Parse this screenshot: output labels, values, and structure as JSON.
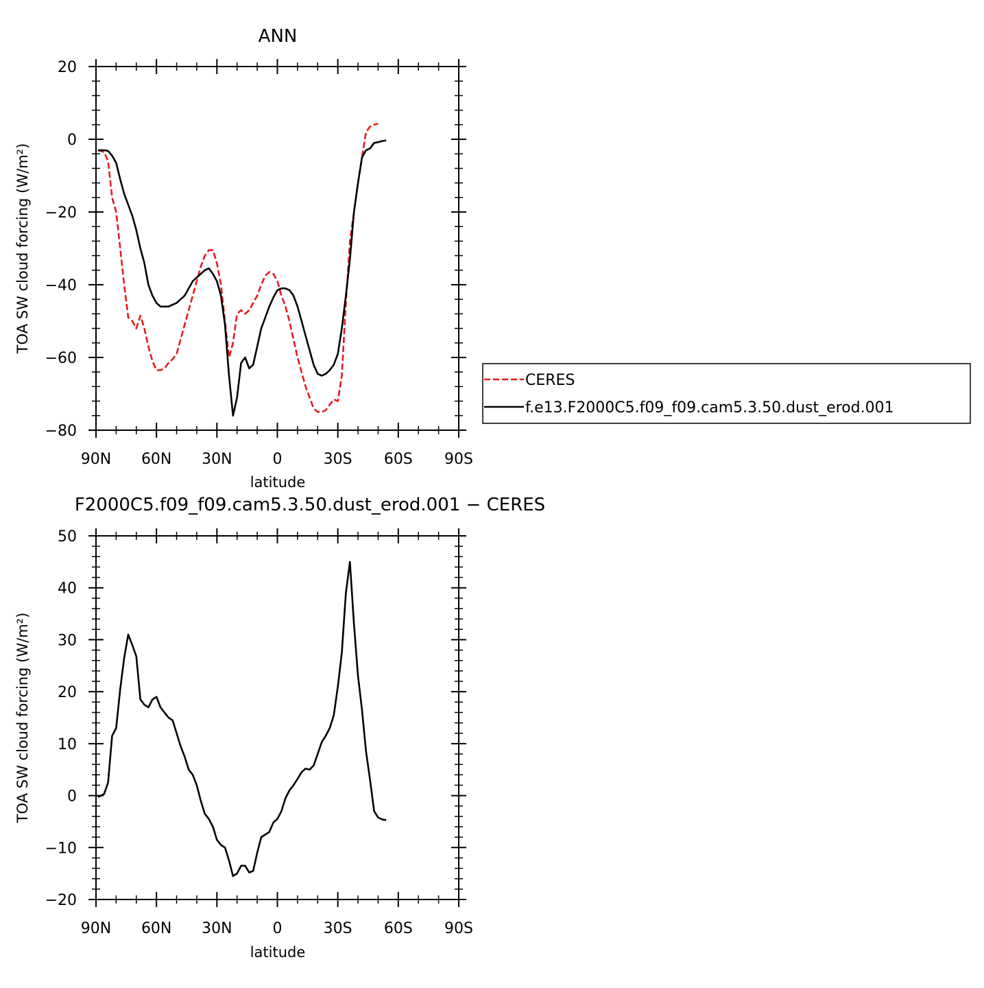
{
  "chart_data": [
    {
      "type": "line",
      "title": "ANN",
      "xlabel": "latitude",
      "ylabel": "TOA SW cloud forcing (W/m²)",
      "xlim": [
        90,
        -90
      ],
      "ylim": [
        -80,
        20
      ],
      "x_ticks": [
        90,
        60,
        30,
        0,
        -30,
        -60,
        -90
      ],
      "x_tick_labels": [
        "90N",
        "60N",
        "30N",
        "0",
        "30S",
        "60S",
        "90S"
      ],
      "y_ticks": [
        -80,
        -60,
        -40,
        -20,
        0,
        20
      ],
      "grid": false,
      "legend_placement": "right",
      "series": [
        {
          "name": "CERES",
          "color": "#e41a1c",
          "dash": "dashed",
          "points": [
            [
              89,
              -3
            ],
            [
              86,
              -3.5
            ],
            [
              84,
              -6
            ],
            [
              82,
              -16
            ],
            [
              80,
              -20
            ],
            [
              78,
              -30
            ],
            [
              76,
              -40
            ],
            [
              74,
              -49
            ],
            [
              72,
              -50
            ],
            [
              70,
              -52
            ],
            [
              68,
              -48.5
            ],
            [
              66,
              -52
            ],
            [
              64,
              -57
            ],
            [
              62,
              -61
            ],
            [
              60,
              -63.5
            ],
            [
              58,
              -63.5
            ],
            [
              56,
              -63
            ],
            [
              54,
              -61.5
            ],
            [
              52,
              -60.5
            ],
            [
              50,
              -59
            ],
            [
              48,
              -55
            ],
            [
              46,
              -51
            ],
            [
              44,
              -47
            ],
            [
              42,
              -43
            ],
            [
              40,
              -39
            ],
            [
              38,
              -35
            ],
            [
              36,
              -32
            ],
            [
              34,
              -30.5
            ],
            [
              32,
              -30.5
            ],
            [
              30,
              -34
            ],
            [
              28,
              -40
            ],
            [
              26,
              -50
            ],
            [
              24,
              -60
            ],
            [
              22,
              -56
            ],
            [
              20,
              -48
            ],
            [
              18,
              -47
            ],
            [
              16,
              -48
            ],
            [
              14,
              -47
            ],
            [
              12,
              -45
            ],
            [
              10,
              -43
            ],
            [
              8,
              -40
            ],
            [
              6,
              -37.5
            ],
            [
              4,
              -36.5
            ],
            [
              2,
              -37
            ],
            [
              0,
              -39
            ],
            [
              -2,
              -43
            ],
            [
              -4,
              -46
            ],
            [
              -6,
              -50
            ],
            [
              -8,
              -55
            ],
            [
              -10,
              -60
            ],
            [
              -12,
              -64
            ],
            [
              -14,
              -68
            ],
            [
              -16,
              -71
            ],
            [
              -18,
              -74
            ],
            [
              -20,
              -75
            ],
            [
              -22,
              -75
            ],
            [
              -24,
              -74.5
            ],
            [
              -26,
              -73
            ],
            [
              -28,
              -71.5
            ],
            [
              -30,
              -72
            ],
            [
              -32,
              -65
            ],
            [
              -34,
              -45
            ],
            [
              -36,
              -28
            ],
            [
              -38,
              -20
            ],
            [
              -40,
              -12
            ],
            [
              -42,
              -5
            ],
            [
              -44,
              2
            ],
            [
              -46,
              3.5
            ],
            [
              -48,
              4
            ],
            [
              -50,
              4.3
            ]
          ]
        },
        {
          "name": "f.e13.F2000C5.f09_f09.cam5.3.50.dust_erod.001",
          "color": "#000000",
          "dash": "solid",
          "points": [
            [
              89,
              -3
            ],
            [
              86,
              -3
            ],
            [
              84,
              -3.2
            ],
            [
              82,
              -4.5
            ],
            [
              80,
              -6.5
            ],
            [
              78,
              -11
            ],
            [
              76,
              -15
            ],
            [
              74,
              -18
            ],
            [
              72,
              -21
            ],
            [
              70,
              -25
            ],
            [
              68,
              -30
            ],
            [
              66,
              -34
            ],
            [
              64,
              -40
            ],
            [
              62,
              -43
            ],
            [
              60,
              -45
            ],
            [
              58,
              -46
            ],
            [
              56,
              -46
            ],
            [
              54,
              -46
            ],
            [
              52,
              -45.5
            ],
            [
              50,
              -45
            ],
            [
              48,
              -44
            ],
            [
              46,
              -43
            ],
            [
              44,
              -41
            ],
            [
              42,
              -39
            ],
            [
              40,
              -38
            ],
            [
              38,
              -37
            ],
            [
              36,
              -36
            ],
            [
              34,
              -35.5
            ],
            [
              32,
              -37
            ],
            [
              30,
              -39
            ],
            [
              28,
              -43
            ],
            [
              26,
              -51
            ],
            [
              24,
              -65
            ],
            [
              22,
              -76
            ],
            [
              20,
              -71
            ],
            [
              18,
              -61.5
            ],
            [
              16,
              -60
            ],
            [
              14,
              -63
            ],
            [
              12,
              -62
            ],
            [
              10,
              -57
            ],
            [
              8,
              -52
            ],
            [
              6,
              -49
            ],
            [
              4,
              -46
            ],
            [
              2,
              -43.5
            ],
            [
              0,
              -41.5
            ],
            [
              -2,
              -41
            ],
            [
              -4,
              -41
            ],
            [
              -6,
              -41.5
            ],
            [
              -8,
              -43
            ],
            [
              -10,
              -46
            ],
            [
              -12,
              -50
            ],
            [
              -14,
              -54
            ],
            [
              -16,
              -58
            ],
            [
              -18,
              -62
            ],
            [
              -20,
              -64.5
            ],
            [
              -22,
              -65
            ],
            [
              -24,
              -64.5
            ],
            [
              -26,
              -63.5
            ],
            [
              -28,
              -62
            ],
            [
              -30,
              -59
            ],
            [
              -32,
              -52
            ],
            [
              -34,
              -43
            ],
            [
              -36,
              -33
            ],
            [
              -38,
              -20
            ],
            [
              -40,
              -12
            ],
            [
              -42,
              -5
            ],
            [
              -44,
              -3
            ],
            [
              -46,
              -2.5
            ],
            [
              -48,
              -1
            ],
            [
              -50,
              -0.8
            ],
            [
              -52,
              -0.5
            ],
            [
              -54,
              -0.3
            ]
          ]
        }
      ]
    },
    {
      "type": "line",
      "title": "F2000C5.f09_f09.cam5.3.50.dust_erod.001 − CERES",
      "xlabel": "latitude",
      "ylabel": "TOA SW cloud forcing (W/m²)",
      "xlim": [
        90,
        -90
      ],
      "ylim": [
        -20,
        50
      ],
      "x_ticks": [
        90,
        60,
        30,
        0,
        -30,
        -60,
        -90
      ],
      "x_tick_labels": [
        "90N",
        "60N",
        "30N",
        "0",
        "30S",
        "60S",
        "90S"
      ],
      "y_ticks": [
        -20,
        -10,
        0,
        10,
        20,
        30,
        40,
        50
      ],
      "grid": false,
      "series": [
        {
          "color": "#000000",
          "dash": "solid",
          "points": [
            [
              89,
              -0.3
            ],
            [
              86,
              0.3
            ],
            [
              84,
              2.5
            ],
            [
              82,
              11.5
            ],
            [
              80,
              13
            ],
            [
              78,
              20.5
            ],
            [
              76,
              26.5
            ],
            [
              74,
              31
            ],
            [
              72,
              29
            ],
            [
              70,
              26.8
            ],
            [
              68,
              18.5
            ],
            [
              66,
              17.5
            ],
            [
              64,
              17
            ],
            [
              62,
              18.5
            ],
            [
              60,
              19
            ],
            [
              58,
              17
            ],
            [
              56,
              16
            ],
            [
              54,
              15
            ],
            [
              52,
              14.5
            ],
            [
              50,
              12
            ],
            [
              48,
              9.5
            ],
            [
              46,
              7.5
            ],
            [
              44,
              5
            ],
            [
              42,
              4
            ],
            [
              40,
              2
            ],
            [
              38,
              -1
            ],
            [
              36,
              -3.5
            ],
            [
              34,
              -4.5
            ],
            [
              32,
              -6
            ],
            [
              30,
              -8.5
            ],
            [
              28,
              -9.5
            ],
            [
              26,
              -10
            ],
            [
              24,
              -12.5
            ],
            [
              22,
              -15.5
            ],
            [
              20,
              -15
            ],
            [
              18,
              -13.5
            ],
            [
              16,
              -13.5
            ],
            [
              14,
              -14.8
            ],
            [
              12,
              -14.5
            ],
            [
              10,
              -11
            ],
            [
              8,
              -8
            ],
            [
              6,
              -7.5
            ],
            [
              4,
              -7
            ],
            [
              2,
              -5.2
            ],
            [
              0,
              -4.5
            ],
            [
              -2,
              -3
            ],
            [
              -4,
              -0.5
            ],
            [
              -6,
              1
            ],
            [
              -8,
              2
            ],
            [
              -10,
              3.2
            ],
            [
              -12,
              4.5
            ],
            [
              -14,
              5.2
            ],
            [
              -16,
              5
            ],
            [
              -18,
              5.8
            ],
            [
              -20,
              8
            ],
            [
              -22,
              10.3
            ],
            [
              -24,
              11.5
            ],
            [
              -26,
              13
            ],
            [
              -28,
              15.5
            ],
            [
              -30,
              21
            ],
            [
              -32,
              27.5
            ],
            [
              -34,
              39
            ],
            [
              -36,
              45
            ],
            [
              -38,
              33
            ],
            [
              -40,
              23
            ],
            [
              -42,
              16.5
            ],
            [
              -44,
              8.5
            ],
            [
              -46,
              3
            ],
            [
              -48,
              -3
            ],
            [
              -50,
              -4.2
            ],
            [
              -52,
              -4.6
            ],
            [
              -54,
              -4.7
            ]
          ]
        }
      ]
    }
  ]
}
